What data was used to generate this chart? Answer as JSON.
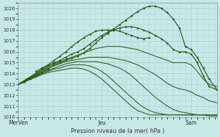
{
  "bg_color": "#c8e8e8",
  "plot_bg_color": "#c8e8e8",
  "grid_color": "#aacccc",
  "line_color": "#2d5a1b",
  "marker_color": "#2d5a1b",
  "ylim": [
    1010,
    1020.5
  ],
  "yticks": [
    1010,
    1011,
    1012,
    1013,
    1014,
    1015,
    1016,
    1017,
    1018,
    1019,
    1020
  ],
  "xtick_labels": [
    "MerVen",
    "Jeu",
    "Sam"
  ],
  "xtick_positions": [
    0.0,
    0.42,
    0.87
  ],
  "xlabel": "Pression niveau de la mer( hPa )",
  "lines": [
    {
      "x": [
        0.0,
        0.03,
        0.06,
        0.09,
        0.12,
        0.15,
        0.18,
        0.21,
        0.24,
        0.27,
        0.3,
        0.33,
        0.36,
        0.39,
        0.42,
        0.45,
        0.48,
        0.51,
        0.54,
        0.57,
        0.6,
        0.63,
        0.66,
        0.69,
        0.72,
        0.75,
        0.78,
        0.81,
        0.84,
        0.87,
        0.9,
        0.93,
        0.96,
        1.0
      ],
      "y": [
        1013.0,
        1013.2,
        1013.5,
        1013.8,
        1014.1,
        1014.4,
        1014.8,
        1015.0,
        1015.2,
        1015.4,
        1015.6,
        1015.9,
        1016.3,
        1016.8,
        1017.3,
        1017.7,
        1018.1,
        1018.5,
        1018.9,
        1019.3,
        1019.7,
        1020.0,
        1020.2,
        1020.2,
        1020.0,
        1019.6,
        1019.0,
        1018.2,
        1016.5,
        1016.2,
        1015.5,
        1014.5,
        1013.5,
        1012.5
      ],
      "marker": true,
      "lw": 0.9
    },
    {
      "x": [
        0.0,
        0.12,
        0.15,
        0.18,
        0.21,
        0.24,
        0.27,
        0.3,
        0.33,
        0.36,
        0.39,
        0.42,
        0.45,
        0.48,
        0.51,
        0.54,
        0.57,
        0.6,
        0.63,
        0.66,
        0.69,
        0.72,
        0.75,
        0.78,
        0.81,
        0.84,
        0.87,
        0.9,
        0.93,
        0.96,
        1.0
      ],
      "y": [
        1013.0,
        1014.4,
        1014.7,
        1015.0,
        1015.2,
        1015.5,
        1015.8,
        1016.0,
        1016.3,
        1016.7,
        1017.1,
        1017.5,
        1017.8,
        1018.0,
        1018.2,
        1018.3,
        1018.3,
        1018.2,
        1018.0,
        1017.8,
        1017.5,
        1017.2,
        1016.8,
        1016.2,
        1016.0,
        1016.0,
        1015.8,
        1015.0,
        1013.8,
        1012.8,
        1012.5
      ],
      "marker": true,
      "lw": 0.9
    },
    {
      "x": [
        0.0,
        0.12,
        0.15,
        0.18,
        0.21,
        0.24,
        0.27,
        0.3,
        0.33,
        0.36,
        0.39,
        0.42,
        0.45,
        0.48,
        0.51,
        0.54,
        0.57,
        0.6,
        0.63,
        0.66,
        0.69,
        0.72,
        0.75,
        0.78,
        0.81,
        0.84,
        0.87,
        0.9,
        0.93,
        0.96,
        1.0
      ],
      "y": [
        1013.0,
        1014.3,
        1014.6,
        1014.9,
        1015.1,
        1015.3,
        1015.5,
        1015.7,
        1015.9,
        1016.1,
        1016.3,
        1016.4,
        1016.5,
        1016.5,
        1016.5,
        1016.4,
        1016.3,
        1016.2,
        1016.0,
        1015.8,
        1015.6,
        1015.4,
        1015.2,
        1015.0,
        1015.0,
        1015.0,
        1014.8,
        1014.2,
        1013.5,
        1013.0,
        1012.8
      ],
      "marker": false,
      "lw": 0.8
    },
    {
      "x": [
        0.0,
        0.12,
        0.15,
        0.18,
        0.21,
        0.24,
        0.27,
        0.3,
        0.33,
        0.36,
        0.39,
        0.42,
        0.45,
        0.48,
        0.51,
        0.54,
        0.57,
        0.6,
        0.63,
        0.66,
        0.69,
        0.72,
        0.75,
        0.78,
        0.81,
        0.84,
        0.87,
        0.9,
        0.93,
        0.96,
        1.0
      ],
      "y": [
        1013.0,
        1014.2,
        1014.5,
        1014.7,
        1014.9,
        1015.1,
        1015.2,
        1015.3,
        1015.4,
        1015.5,
        1015.5,
        1015.5,
        1015.5,
        1015.4,
        1015.3,
        1015.2,
        1015.0,
        1014.8,
        1014.5,
        1014.2,
        1013.9,
        1013.5,
        1013.1,
        1012.8,
        1012.6,
        1012.5,
        1012.3,
        1012.0,
        1011.8,
        1011.5,
        1011.3
      ],
      "marker": false,
      "lw": 0.8
    },
    {
      "x": [
        0.0,
        0.12,
        0.15,
        0.18,
        0.21,
        0.24,
        0.27,
        0.3,
        0.33,
        0.36,
        0.39,
        0.42,
        0.45,
        0.48,
        0.51,
        0.54,
        0.57,
        0.6,
        0.63,
        0.66,
        0.69,
        0.72,
        0.75,
        0.78,
        0.81,
        0.84,
        0.87,
        0.9,
        0.93,
        0.96,
        1.0
      ],
      "y": [
        1013.0,
        1014.1,
        1014.3,
        1014.5,
        1014.7,
        1014.9,
        1015.0,
        1015.1,
        1015.1,
        1015.1,
        1015.1,
        1015.0,
        1014.9,
        1014.7,
        1014.5,
        1014.2,
        1013.8,
        1013.3,
        1012.8,
        1012.3,
        1011.8,
        1011.4,
        1011.0,
        1010.7,
        1010.5,
        1010.4,
        1010.3,
        1010.2,
        1010.2,
        1010.1,
        1010.1
      ],
      "marker": false,
      "lw": 0.8
    },
    {
      "x": [
        0.0,
        0.12,
        0.15,
        0.18,
        0.21,
        0.24,
        0.27,
        0.3,
        0.33,
        0.36,
        0.39,
        0.42,
        0.45,
        0.48,
        0.51,
        0.54,
        0.57,
        0.6,
        0.63,
        0.66,
        0.69,
        0.72,
        0.75,
        0.78,
        0.81,
        0.84,
        0.87,
        0.9,
        0.93,
        0.96,
        1.0
      ],
      "y": [
        1013.0,
        1014.0,
        1014.2,
        1014.4,
        1014.5,
        1014.7,
        1014.8,
        1014.8,
        1014.8,
        1014.7,
        1014.5,
        1014.2,
        1013.8,
        1013.3,
        1012.8,
        1012.3,
        1011.8,
        1011.3,
        1010.9,
        1010.6,
        1010.4,
        1010.3,
        1010.2,
        1010.2,
        1010.2,
        1010.2,
        1010.2,
        1010.2,
        1010.2,
        1010.2,
        1010.2
      ],
      "marker": false,
      "lw": 0.8
    },
    {
      "x": [
        0.0,
        0.12,
        0.15,
        0.18,
        0.21,
        0.24,
        0.27,
        0.3,
        0.33,
        0.36,
        0.39,
        0.42,
        0.45,
        0.48,
        0.51,
        0.54,
        0.57,
        0.6,
        0.63,
        0.66,
        0.69,
        0.72,
        0.75,
        0.78,
        0.81,
        0.84,
        0.87,
        0.9,
        0.93,
        0.96,
        1.0
      ],
      "y": [
        1013.0,
        1013.9,
        1014.1,
        1014.2,
        1014.3,
        1014.4,
        1014.5,
        1014.5,
        1014.4,
        1014.2,
        1013.9,
        1013.5,
        1013.0,
        1012.5,
        1012.0,
        1011.5,
        1011.0,
        1010.6,
        1010.4,
        1010.2,
        1010.2,
        1010.2,
        1010.2,
        1010.2,
        1010.2,
        1010.2,
        1010.2,
        1010.2,
        1010.2,
        1010.2,
        1010.2
      ],
      "marker": false,
      "lw": 0.8
    },
    {
      "x": [
        0.09,
        0.12,
        0.15,
        0.18,
        0.21,
        0.24,
        0.27,
        0.3,
        0.33,
        0.36,
        0.39,
        0.42,
        0.45,
        0.48,
        0.51,
        0.54,
        0.57,
        0.6,
        0.63,
        0.66
      ],
      "y": [
        1014.2,
        1014.5,
        1014.8,
        1015.2,
        1015.6,
        1016.0,
        1016.5,
        1016.9,
        1017.3,
        1017.6,
        1017.9,
        1018.0,
        1018.0,
        1018.0,
        1017.9,
        1017.7,
        1017.5,
        1017.3,
        1017.2,
        1017.3
      ],
      "marker": true,
      "lw": 0.9
    }
  ]
}
